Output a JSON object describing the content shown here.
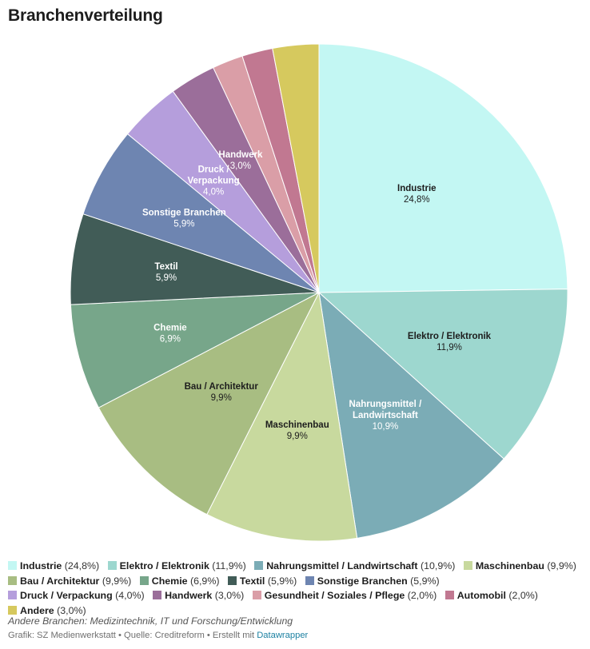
{
  "chart_data": {
    "type": "pie",
    "title": "Branchenverteilung",
    "start_angle_deg": 0,
    "direction": "clockwise",
    "slices": [
      {
        "label": "Industrie",
        "value": 24.8,
        "value_label": "24,8%",
        "color": "#c3f7f3",
        "label_lines": [
          "Industrie"
        ],
        "label_color": "#1d1d1d"
      },
      {
        "label": "Elektro / Elektronik",
        "value": 11.9,
        "value_label": "11,9%",
        "color": "#9dd7cf",
        "label_lines": [
          "Elektro / Elektronik"
        ],
        "label_color": "#1d1d1d"
      },
      {
        "label": "Nahrungsmittel / Landwirtschaft",
        "value": 10.9,
        "value_label": "10,9%",
        "color": "#7bacb6",
        "label_lines": [
          "Nahrungsmittel /",
          "Landwirtschaft"
        ],
        "label_color": "#ffffff"
      },
      {
        "label": "Maschinenbau",
        "value": 9.9,
        "value_label": "9,9%",
        "color": "#c8d99e",
        "label_lines": [
          "Maschinenbau"
        ],
        "label_color": "#1d1d1d"
      },
      {
        "label": "Bau / Architektur",
        "value": 9.9,
        "value_label": "9,9%",
        "color": "#a8bd82",
        "label_lines": [
          "Bau / Architektur"
        ],
        "label_color": "#1d1d1d"
      },
      {
        "label": "Chemie",
        "value": 6.9,
        "value_label": "6,9%",
        "color": "#77a68a",
        "label_lines": [
          "Chemie"
        ],
        "label_color": "#ffffff"
      },
      {
        "label": "Textil",
        "value": 5.9,
        "value_label": "5,9%",
        "color": "#415c57",
        "label_lines": [
          "Textil"
        ],
        "label_color": "#ffffff"
      },
      {
        "label": "Sonstige Branchen",
        "value": 5.9,
        "value_label": "5,9%",
        "color": "#6e85b1",
        "label_lines": [
          "Sonstige Branchen"
        ],
        "label_color": "#ffffff"
      },
      {
        "label": "Druck / Verpackung",
        "value": 4.0,
        "value_label": "4,0%",
        "color": "#b59edc",
        "label_lines": [
          "Druck /",
          "Verpackung"
        ],
        "label_color": "#ffffff"
      },
      {
        "label": "Handwerk",
        "value": 3.0,
        "value_label": "3,0%",
        "color": "#9b6e9a",
        "label_lines": [
          "Handwerk"
        ],
        "label_color": "#ffffff"
      },
      {
        "label": "Gesundheit / Soziales / Pflege",
        "value": 2.0,
        "value_label": "2,0%",
        "color": "#da9ea7",
        "label_lines": [],
        "label_color": "#ffffff"
      },
      {
        "label": "Automobil",
        "value": 2.0,
        "value_label": "2,0%",
        "color": "#c17891",
        "label_lines": [],
        "label_color": "#ffffff"
      },
      {
        "label": "Andere",
        "value": 3.0,
        "value_label": "3,0%",
        "color": "#d6c95e",
        "label_lines": [],
        "label_color": "#ffffff"
      }
    ],
    "legend": {
      "placement": "bottom",
      "items": [
        {
          "name": "Industrie",
          "value_text": " (24,8%)"
        },
        {
          "name": "Elektro / Elektronik",
          "value_text": " (11,9%)"
        },
        {
          "name": "Nahrungsmittel / Landwirtschaft",
          "value_text": " (10,9%)"
        },
        {
          "name": "Maschinenbau",
          "value_text": " (9,9%)"
        },
        {
          "name": "Bau / Architektur",
          "value_text": " (9,9%)"
        },
        {
          "name": "Chemie",
          "value_text": " (6,9%)"
        },
        {
          "name": "Textil",
          "value_text": " (5,9%)"
        },
        {
          "name": "Sonstige Branchen",
          "value_text": " (5,9%)"
        },
        {
          "name": "Druck / Verpackung",
          "value_text": " (4,0%)"
        },
        {
          "name": "Handwerk",
          "value_text": " (3,0%)"
        },
        {
          "name": "Gesundheit / Soziales / Pflege",
          "value_text": " (2,0%)"
        },
        {
          "name": "Automobil",
          "value_text": " (2,0%)"
        },
        {
          "name": "Andere",
          "value_text": " (3,0%)"
        }
      ]
    }
  },
  "footer": {
    "note": "Andere Branchen: Medizintechnik, IT und Forschung/Entwicklung",
    "credits_prefix": "Grafik: SZ Medienwerkstatt • Quelle: Creditreform • Erstellt mit ",
    "credits_link": "Datawrapper"
  }
}
